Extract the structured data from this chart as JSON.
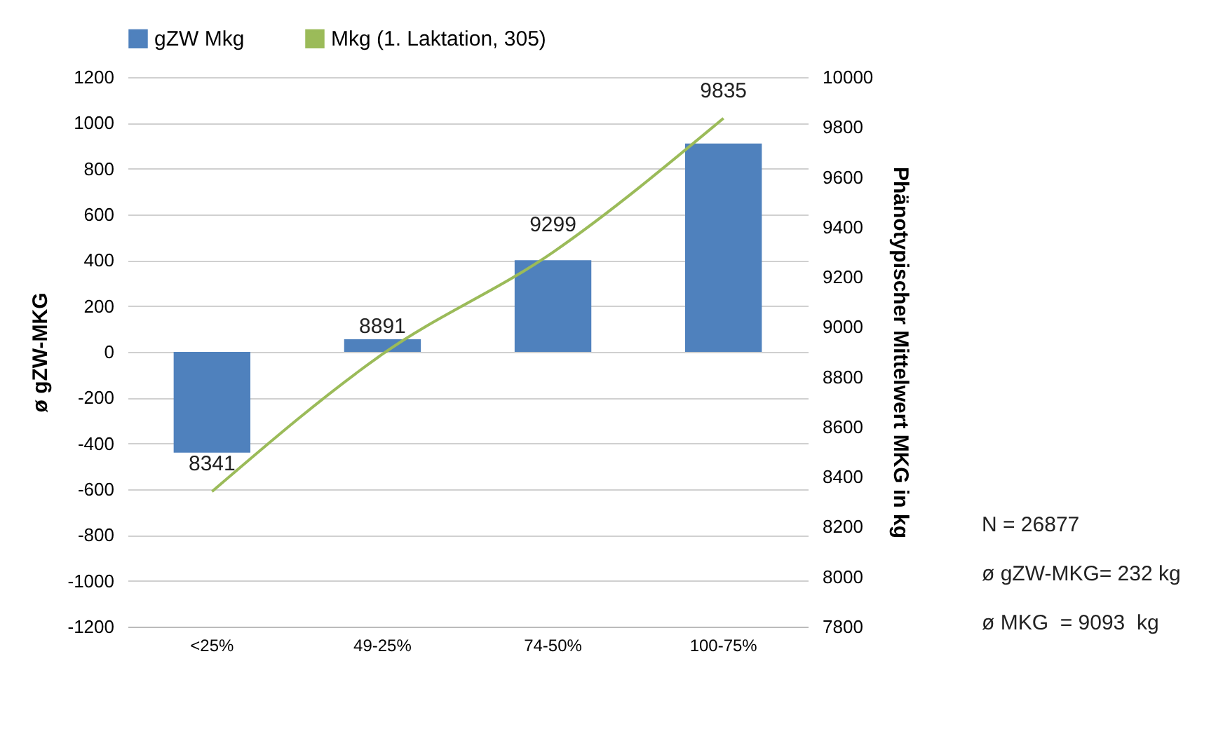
{
  "chart_data": {
    "type": "bar",
    "categories": [
      "<25%",
      "49-25%",
      "74-50%",
      "100-75%"
    ],
    "ylabel": "ø  gZW-MKG",
    "y2label": "Phänotypischer Mittelwert  MKG in kg",
    "ylim": [
      -1200,
      1200
    ],
    "yticks": [
      -1200,
      -1000,
      -800,
      -600,
      -400,
      -200,
      0,
      200,
      400,
      600,
      800,
      1000,
      1200
    ],
    "y2lim": [
      7800,
      10000
    ],
    "y2ticks": [
      7800,
      8000,
      8200,
      8400,
      8600,
      8800,
      9000,
      9200,
      9400,
      9600,
      9800,
      10000
    ],
    "grid": "y",
    "legend": "top",
    "series": [
      {
        "name": "gZW Mkg",
        "type": "bar",
        "color": "#4f81bd",
        "values": [
          -440,
          55,
          400,
          910
        ]
      },
      {
        "name": "Mkg (1. Laktation, 305)",
        "type": "line",
        "axis": "y2",
        "color": "#9bbb59",
        "values": [
          8341,
          8891,
          9299,
          9835
        ],
        "value_labels": [
          "8341",
          "8891",
          "9299",
          "9835"
        ]
      }
    ],
    "annotations": [
      "N = 26877",
      "ø gZW-MKG= 232 kg",
      "ø MKG  = 9093  kg"
    ]
  }
}
